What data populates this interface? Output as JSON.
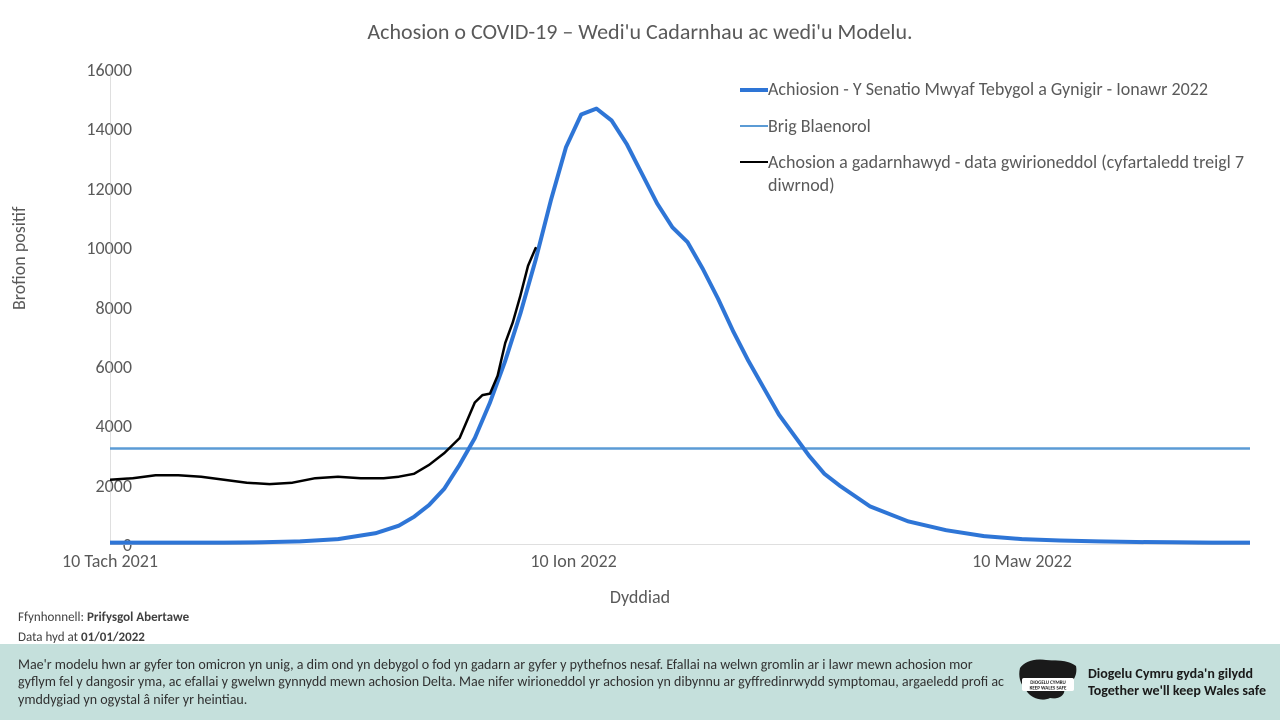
{
  "chart": {
    "type": "line",
    "title": "Achosion o COVID-19 – Wedi'u Cadarnhau ac wedi'u Modelu.",
    "title_fontsize": 22,
    "title_color": "#595959",
    "background_color": "#ffffff",
    "ylabel": "Brofion positif",
    "xlabel": "Dyddiad",
    "label_fontsize": 18,
    "label_color": "#595959",
    "ylim": [
      0,
      16000
    ],
    "ytick_step": 2000,
    "yticks": [
      0,
      2000,
      4000,
      6000,
      8000,
      10000,
      12000,
      14000,
      16000
    ],
    "xlim": [
      0,
      150
    ],
    "xticks": [
      {
        "pos": 0,
        "label": "10 Tach 2021"
      },
      {
        "pos": 61,
        "label": "10 Ion 2022"
      },
      {
        "pos": 120,
        "label": "10 Maw 2022"
      }
    ],
    "axis_color": "#bfbfbf",
    "tick_color": "#bfbfbf",
    "series": {
      "model": {
        "label": "Achiosion - Y Senatio Mwyaf Tebygol a Gynigir - Ionawr 2022",
        "color": "#2e75d6",
        "width": 4,
        "x": [
          0,
          5,
          10,
          15,
          20,
          25,
          30,
          35,
          38,
          40,
          42,
          44,
          46,
          48,
          50,
          52,
          54,
          56,
          58,
          60,
          62,
          64,
          66,
          68,
          70,
          72,
          74,
          76,
          78,
          80,
          82,
          84,
          86,
          88,
          90,
          92,
          94,
          96,
          100,
          105,
          110,
          115,
          120,
          125,
          130,
          135,
          140,
          145,
          150
        ],
        "y": [
          80,
          80,
          80,
          80,
          90,
          120,
          200,
          400,
          650,
          950,
          1350,
          1900,
          2700,
          3600,
          4800,
          6200,
          7800,
          9600,
          11600,
          13400,
          14500,
          14700,
          14300,
          13500,
          12500,
          11500,
          10700,
          10200,
          9300,
          8300,
          7200,
          6200,
          5300,
          4400,
          3700,
          3000,
          2400,
          2000,
          1300,
          800,
          500,
          300,
          200,
          150,
          120,
          100,
          90,
          80,
          80
        ]
      },
      "previous_peak": {
        "label": "Brig Blaenorol",
        "color": "#5b9bd5",
        "width": 2.5,
        "value": 3250
      },
      "actual": {
        "label": "Achosion a gadarnhawyd - data gwirioneddol (cyfartaledd treigl 7 diwrnod)",
        "color": "#000000",
        "width": 2.5,
        "x": [
          0,
          3,
          6,
          9,
          12,
          15,
          18,
          21,
          24,
          27,
          30,
          33,
          36,
          38,
          40,
          42,
          44,
          46,
          48,
          49,
          50,
          51,
          52,
          53,
          54,
          55,
          56
        ],
        "y": [
          2200,
          2250,
          2350,
          2350,
          2300,
          2200,
          2100,
          2050,
          2100,
          2250,
          2300,
          2250,
          2250,
          2300,
          2400,
          2700,
          3100,
          3600,
          4800,
          5050,
          5100,
          5700,
          6800,
          7500,
          8400,
          9400,
          10000
        ]
      }
    },
    "legend": {
      "position": "top-right",
      "fontsize": 18,
      "items": [
        {
          "key": "model"
        },
        {
          "key": "previous_peak"
        },
        {
          "key": "actual"
        }
      ]
    }
  },
  "footer": {
    "source_label": "Ffynhonnell:",
    "source_value": "Prifysgol Abertawe",
    "date_label": "Data hyd at",
    "date_value": "01/01/2022"
  },
  "banner": {
    "background_color": "#c5e0dc",
    "text": "Mae'r modelu hwn ar gyfer ton omicron yn unig, a dim ond yn debygol o fod yn gadarn ar gyfer y pythefnos nesaf. Efallai na welwn gromlin ar i lawr mewn achosion mor gyflym fel y dangosir yma, ac efallai y gwelwn gynnydd mewn achosion Delta. Mae nifer wirioneddol yr achosion yn dibynnu ar gyffredinrwydd symptomau, argaeledd profi ac ymddygiad yn ogystal â nifer yr heintiau.",
    "logo_line1": "Diogelu Cymru gyda'n gilydd",
    "logo_line2": "Together we'll keep Wales safe",
    "logo_badge_top": "DIOGELU CYMRU",
    "logo_badge_bottom": "KEEP WALES SAFE"
  }
}
